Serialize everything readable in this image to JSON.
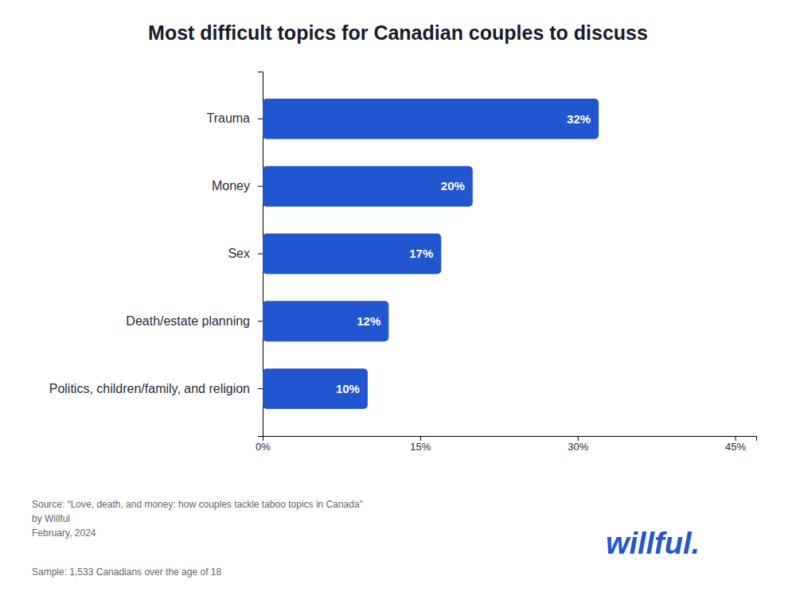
{
  "chart_data": {
    "type": "bar",
    "orientation": "horizontal",
    "title": "Most difficult topics for Canadian couples to discuss",
    "categories": [
      "Politics, children/family, and religion",
      "Death/estate planning",
      "Sex",
      "Money",
      "Trauma"
    ],
    "values": [
      10,
      12,
      17,
      20,
      32
    ],
    "value_labels": [
      "10%",
      "12%",
      "17%",
      "20%",
      "32%"
    ],
    "color": "#2255D0",
    "xlim": [
      0,
      47
    ],
    "xticks": [
      {
        "value": 0,
        "label": "0%"
      },
      {
        "value": 15,
        "label": "15%"
      },
      {
        "value": 30,
        "label": "30%"
      },
      {
        "value": 45,
        "label": "45%"
      }
    ],
    "grid": false,
    "data_labels": true,
    "annotations": [
      "Source: “Love, death, and money: how couples tackle taboo topics in Canada”\nby Willful\nFebruary, 2024",
      "Sample: 1,533 Canadians over the age of 18",
      "willful."
    ]
  }
}
